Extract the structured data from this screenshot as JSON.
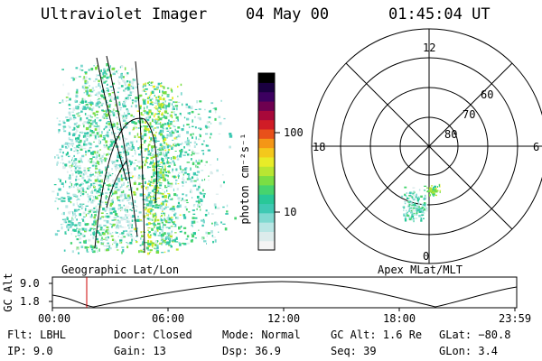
{
  "header": {
    "instrument": "Ultraviolet Imager",
    "date": "04 May 00",
    "time": "01:45:04 UT"
  },
  "geo_panel": {
    "label": "Geographic Lat/Lon"
  },
  "colorbar": {
    "unit_label": "photon cm⁻²s⁻¹",
    "ticks": [
      "100",
      "10"
    ],
    "colors": [
      "#f4f4f4",
      "#dcecec",
      "#b8e6e4",
      "#7fd9d0",
      "#3fc9b3",
      "#28c898",
      "#46d46e",
      "#7ade44",
      "#b8e632",
      "#e8ec28",
      "#f4c81c",
      "#f49616",
      "#e8501a",
      "#d01c26",
      "#a8083a",
      "#6e0050",
      "#3c0060",
      "#1a0040",
      "#000000"
    ]
  },
  "polar_panel": {
    "label": "Apex MLat/MLT",
    "mlt_labels": {
      "top": "12",
      "left": "18",
      "right": "6",
      "bottom": "0"
    },
    "lat_labels": [
      "60",
      "70",
      "80"
    ]
  },
  "altitude_strip": {
    "axis_label": "GC Alt",
    "y_ticks": [
      "9.0",
      "1.8"
    ],
    "x_ticks": [
      "00:00",
      "06:00",
      "12:00",
      "18:00",
      "23:59"
    ],
    "marker_time": "01:45"
  },
  "info": {
    "row1": {
      "filter": "Flt: LBHL",
      "door": "Door: Closed",
      "mode": "Mode: Normal",
      "gc_alt": "GC Alt: 1.6 Re",
      "glat": "GLat: −80.8"
    },
    "row2": {
      "ip": "IP:  9.0",
      "gain": "Gain: 13",
      "dsp": "Dsp:    36.9",
      "seq": "Seq: 39",
      "glon": "GLon:   3.4"
    }
  }
}
